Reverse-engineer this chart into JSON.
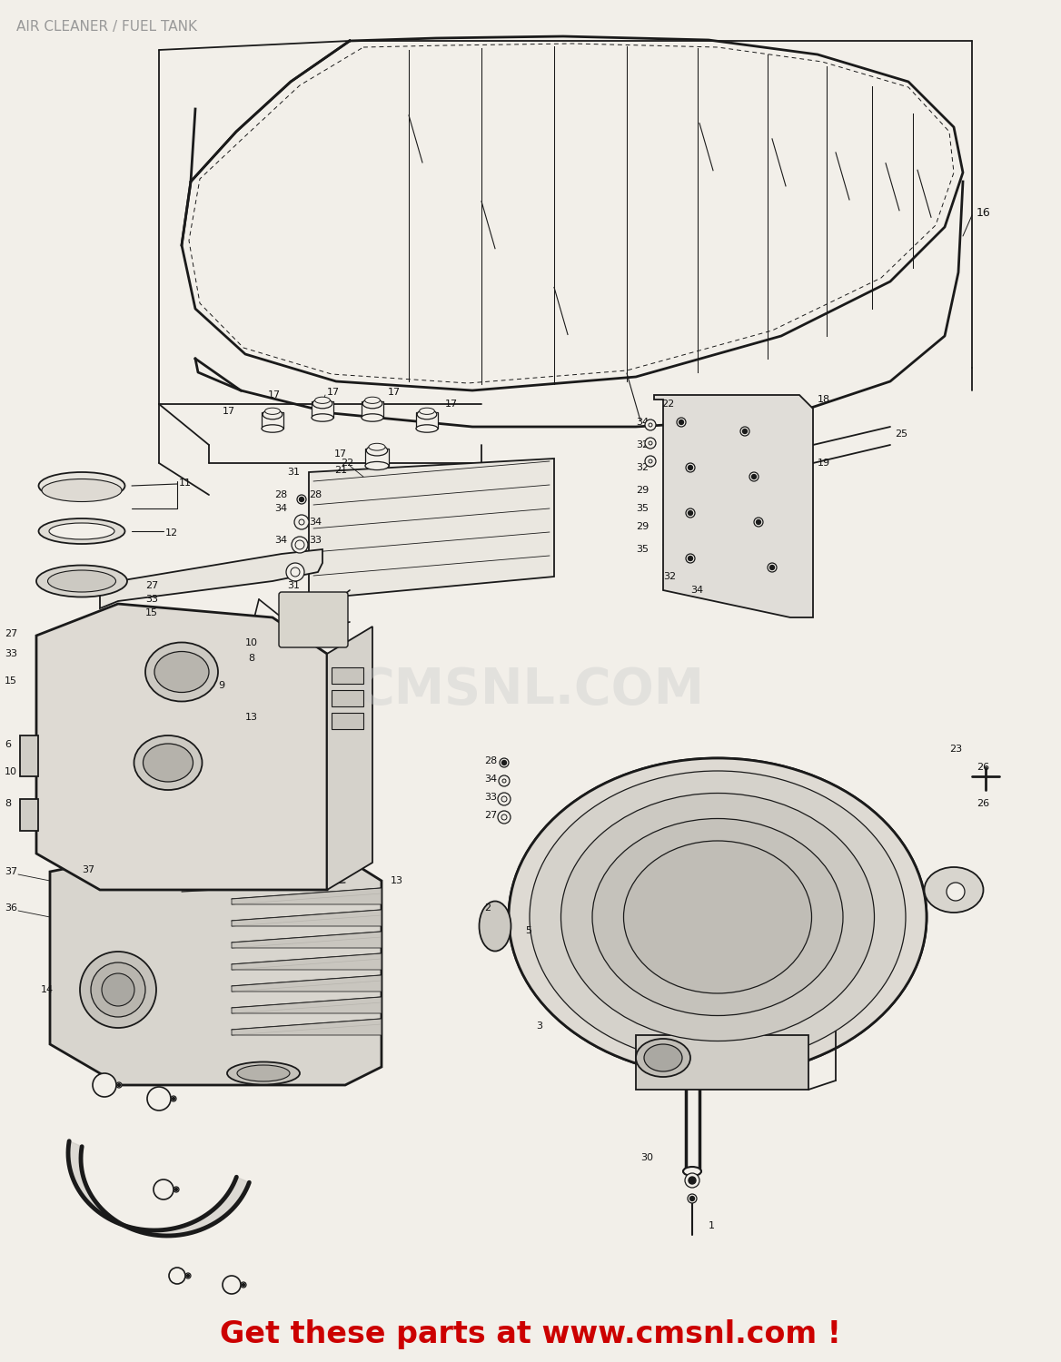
{
  "title": "AIR CLEANER / FUEL TANK",
  "title_color": "#999999",
  "title_fontsize": 11,
  "bg_color": "#f2efe9",
  "watermark_text": "CMSNL.COM",
  "watermark_color": "#cccccc",
  "watermark_fontsize": 40,
  "footer_text": "Get these parts at www.cmsnl.com !",
  "footer_color": "#cc0000",
  "footer_fontsize": 24,
  "line_color": "#1a1a1a",
  "label_fontsize": 8.5,
  "label_color": "#111111"
}
